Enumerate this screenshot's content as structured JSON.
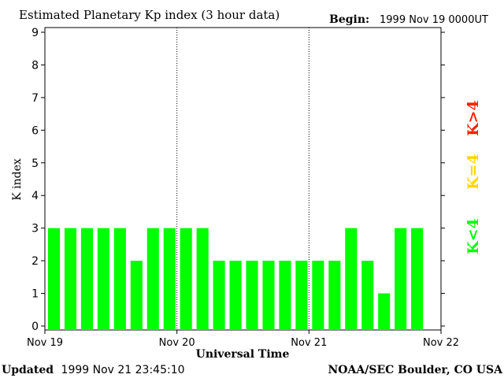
{
  "chart_data": {
    "type": "bar",
    "title": "Estimated Planetary Kp index (3 hour data)",
    "begin_label": "Begin:",
    "begin_value": "1999 Nov 19 0000UT",
    "xlabel": "Universal Time",
    "ylabel": "K index",
    "ylim": [
      0,
      9
    ],
    "yticks": [
      "0",
      "1",
      "2",
      "3",
      "4",
      "5",
      "6",
      "7",
      "8",
      "9"
    ],
    "xticks": [
      "Nov 19",
      "Nov 20",
      "Nov 21",
      "Nov 22"
    ],
    "day_separators": [
      "Nov 20",
      "Nov 21"
    ],
    "bar_color": "#00ff00",
    "values": [
      3,
      3,
      3,
      3,
      3,
      2,
      3,
      3,
      3,
      3,
      2,
      2,
      2,
      2,
      2,
      2,
      2,
      2,
      3,
      2,
      1,
      3,
      3
    ],
    "legend": [
      {
        "label": "K<4",
        "color": "#00ff00"
      },
      {
        "label": "K=4",
        "color": "#ffd700"
      },
      {
        "label": "K>4",
        "color": "#ff2000"
      }
    ],
    "grid": false
  },
  "footer": {
    "updated_label": "Updated",
    "updated_value": "1999 Nov 21 23:45:10",
    "credit": "NOAA/SEC Boulder, CO USA"
  }
}
